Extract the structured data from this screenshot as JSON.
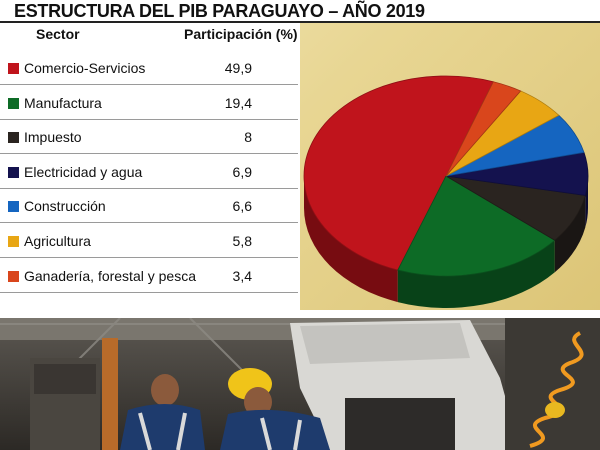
{
  "header": {
    "title": "ESTRUCTURA DEL PIB PARAGUAYO – AÑO 2019"
  },
  "table": {
    "col_sector": "Sector",
    "col_participacion": "Participación (%)",
    "rows": [
      {
        "label": "Comercio-Servicios",
        "value": "49,9"
      },
      {
        "label": "Manufactura",
        "value": "19,4"
      },
      {
        "label": "Impuesto",
        "value": "8"
      },
      {
        "label": "Electricidad y agua",
        "value": "6,9"
      },
      {
        "label": "Construcción",
        "value": "6,6"
      },
      {
        "label": "Agricultura",
        "value": "5,8"
      },
      {
        "label": "Ganadería, forestal y pesca",
        "value": "3,4"
      }
    ]
  },
  "chart_data": {
    "type": "pie",
    "title": "ESTRUCTURA DEL PIB PARAGUAYO – AÑO 2019",
    "categories": [
      "Comercio-Servicios",
      "Manufactura",
      "Impuesto",
      "Electricidad y agua",
      "Construcción",
      "Agricultura",
      "Ganadería, forestal y pesca"
    ],
    "values": [
      49.9,
      19.4,
      8,
      6.9,
      6.6,
      5.8,
      3.4
    ],
    "colors": [
      "#c0141c",
      "#0d6b26",
      "#2a2420",
      "#14124e",
      "#1565c0",
      "#e8a614",
      "#d9461c"
    ],
    "legend": "left"
  },
  "photo": {
    "description_icon": "workers-photo-icon"
  }
}
